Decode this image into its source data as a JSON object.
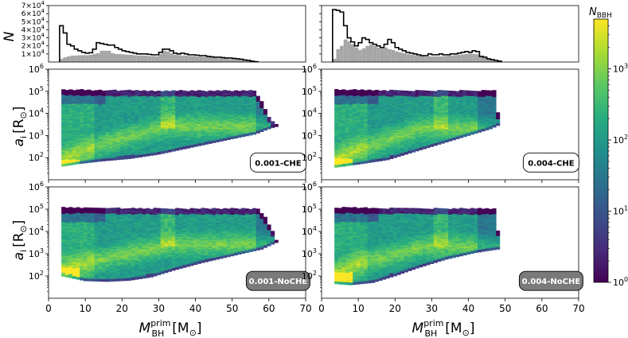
{
  "figure": {
    "hist_ylabel": "N",
    "ylabel_main": "a",
    "ylabel_main_sub": "i",
    "ylabel_unit": "[R",
    "ylabel_unit_end": "]",
    "xlabel_main": "M",
    "xlabel_sup": "prim",
    "xlabel_sub": "BH",
    "xlabel_unit": "[M",
    "xlabel_unit_end": "]",
    "cbar_label": "N",
    "cbar_label_sub": "BBH",
    "sun_symbol": "⊙"
  },
  "chart_data": {
    "type": "heatmap",
    "xlim": [
      0,
      70
    ],
    "x_ticks": [
      0,
      10,
      20,
      30,
      40,
      50,
      60,
      70
    ],
    "x_tick_labels": [
      "0",
      "10",
      "20",
      "30",
      "40",
      "50",
      "60",
      "70"
    ],
    "ylim_log": [
      10,
      1000000
    ],
    "y_tick_exponents": [
      2,
      3,
      4,
      5,
      6
    ],
    "y_tick_base": "10",
    "hist_ylim": [
      0,
      70000
    ],
    "hist_tick_values": [
      10000,
      20000,
      30000,
      40000,
      50000,
      60000,
      70000
    ],
    "hist_tick_mantissa": [
      "1",
      "2",
      "3",
      "4",
      "5",
      "6",
      "7"
    ],
    "hist_tick_times": "×10",
    "hist_tick_exp": "4",
    "colorbar": {
      "scale": "log",
      "range": [
        1,
        5000
      ],
      "tick_exponents": [
        0,
        1,
        2,
        3
      ],
      "tick_base": "10",
      "colormap": "viridis"
    },
    "hist_colors": {
      "outline": "#000000",
      "fill": "#a6a6a6"
    },
    "hist_panels": [
      {
        "column": "left",
        "outline": [
          [
            3,
            45000
          ],
          [
            4,
            36000
          ],
          [
            5,
            22000
          ],
          [
            6,
            20000
          ],
          [
            7,
            16000
          ],
          [
            8,
            14000
          ],
          [
            9,
            12000
          ],
          [
            10,
            11000
          ],
          [
            11,
            11500
          ],
          [
            12,
            16000
          ],
          [
            13,
            24000
          ],
          [
            14,
            23000
          ],
          [
            15,
            22000
          ],
          [
            16,
            21000
          ],
          [
            17,
            21000
          ],
          [
            18,
            18000
          ],
          [
            19,
            16000
          ],
          [
            20,
            14000
          ],
          [
            21,
            13000
          ],
          [
            22,
            12000
          ],
          [
            23,
            11000
          ],
          [
            24,
            10000
          ],
          [
            25,
            10000
          ],
          [
            26,
            10000
          ],
          [
            27,
            9500
          ],
          [
            28,
            9000
          ],
          [
            29,
            9000
          ],
          [
            30,
            12000
          ],
          [
            31,
            16000
          ],
          [
            32,
            16000
          ],
          [
            33,
            14000
          ],
          [
            34,
            11000
          ],
          [
            35,
            10000
          ],
          [
            36,
            11000
          ],
          [
            37,
            10000
          ],
          [
            38,
            9000
          ],
          [
            39,
            9000
          ],
          [
            40,
            8500
          ],
          [
            41,
            8000
          ],
          [
            42,
            8000
          ],
          [
            43,
            7000
          ],
          [
            44,
            6500
          ],
          [
            45,
            6000
          ],
          [
            46,
            6000
          ],
          [
            47,
            5500
          ],
          [
            48,
            5000
          ],
          [
            49,
            5000
          ],
          [
            50,
            4500
          ],
          [
            51,
            4000
          ],
          [
            52,
            3500
          ],
          [
            53,
            2500
          ],
          [
            54,
            2000
          ],
          [
            55,
            1000
          ],
          [
            56,
            500
          ]
        ],
        "filled": [
          [
            3,
            4000
          ],
          [
            4,
            6000
          ],
          [
            5,
            7000
          ],
          [
            6,
            8000
          ],
          [
            7,
            8000
          ],
          [
            8,
            8500
          ],
          [
            9,
            8500
          ],
          [
            10,
            8500
          ],
          [
            11,
            9000
          ],
          [
            12,
            10000
          ],
          [
            13,
            11000
          ],
          [
            14,
            14000
          ],
          [
            15,
            14000
          ],
          [
            16,
            14000
          ],
          [
            17,
            11000
          ],
          [
            18,
            10000
          ],
          [
            19,
            10000
          ],
          [
            20,
            9500
          ],
          [
            21,
            9000
          ],
          [
            22,
            9000
          ],
          [
            23,
            8500
          ],
          [
            24,
            8000
          ],
          [
            25,
            8000
          ],
          [
            26,
            8000
          ],
          [
            27,
            7500
          ],
          [
            28,
            7500
          ],
          [
            29,
            7000
          ],
          [
            30,
            10000
          ],
          [
            31,
            14000
          ],
          [
            32,
            13000
          ],
          [
            33,
            11000
          ],
          [
            34,
            9000
          ],
          [
            35,
            8500
          ],
          [
            36,
            8000
          ],
          [
            37,
            8000
          ],
          [
            38,
            7500
          ],
          [
            39,
            7500
          ],
          [
            40,
            7000
          ],
          [
            41,
            7000
          ],
          [
            42,
            6500
          ],
          [
            43,
            6000
          ],
          [
            44,
            5500
          ],
          [
            45,
            5000
          ],
          [
            46,
            4500
          ],
          [
            47,
            4500
          ],
          [
            48,
            4000
          ],
          [
            49,
            3500
          ],
          [
            50,
            3500
          ],
          [
            51,
            3000
          ],
          [
            52,
            2500
          ],
          [
            53,
            2000
          ],
          [
            54,
            1500
          ],
          [
            55,
            800
          ],
          [
            56,
            400
          ]
        ]
      },
      {
        "column": "right",
        "outline": [
          [
            3,
            65000
          ],
          [
            4,
            64000
          ],
          [
            5,
            62000
          ],
          [
            6,
            45000
          ],
          [
            7,
            30000
          ],
          [
            8,
            25000
          ],
          [
            9,
            20000
          ],
          [
            10,
            24000
          ],
          [
            11,
            30000
          ],
          [
            12,
            28000
          ],
          [
            13,
            24000
          ],
          [
            14,
            22000
          ],
          [
            15,
            20000
          ],
          [
            16,
            18000
          ],
          [
            17,
            22000
          ],
          [
            18,
            28000
          ],
          [
            19,
            24000
          ],
          [
            20,
            18000
          ],
          [
            21,
            16000
          ],
          [
            22,
            14000
          ],
          [
            23,
            12000
          ],
          [
            24,
            11000
          ],
          [
            25,
            10000
          ],
          [
            26,
            9000
          ],
          [
            27,
            8000
          ],
          [
            28,
            8000
          ],
          [
            29,
            10000
          ],
          [
            30,
            9000
          ],
          [
            31,
            9000
          ],
          [
            32,
            10000
          ],
          [
            33,
            9000
          ],
          [
            34,
            9000
          ],
          [
            35,
            10000
          ],
          [
            36,
            10000
          ],
          [
            37,
            11000
          ],
          [
            38,
            12000
          ],
          [
            39,
            13000
          ],
          [
            40,
            12000
          ],
          [
            41,
            14000
          ],
          [
            42,
            13000
          ],
          [
            43,
            7000
          ],
          [
            44,
            6000
          ],
          [
            45,
            4000
          ],
          [
            46,
            3000
          ],
          [
            47,
            2000
          ],
          [
            48,
            1000
          ]
        ],
        "filled": [
          [
            3,
            4000
          ],
          [
            4,
            16000
          ],
          [
            5,
            20000
          ],
          [
            6,
            28000
          ],
          [
            7,
            26000
          ],
          [
            8,
            22000
          ],
          [
            9,
            18000
          ],
          [
            10,
            15000
          ],
          [
            11,
            17000
          ],
          [
            12,
            20000
          ],
          [
            13,
            22000
          ],
          [
            14,
            20000
          ],
          [
            15,
            18000
          ],
          [
            16,
            17000
          ],
          [
            17,
            18000
          ],
          [
            18,
            16000
          ],
          [
            19,
            15000
          ],
          [
            20,
            13000
          ],
          [
            21,
            12000
          ],
          [
            22,
            11000
          ],
          [
            23,
            10000
          ],
          [
            24,
            9000
          ],
          [
            25,
            8500
          ],
          [
            26,
            8000
          ],
          [
            27,
            7500
          ],
          [
            28,
            7000
          ],
          [
            29,
            7000
          ],
          [
            30,
            7000
          ],
          [
            31,
            7000
          ],
          [
            32,
            7000
          ],
          [
            33,
            7500
          ],
          [
            34,
            8000
          ],
          [
            35,
            8000
          ],
          [
            36,
            8500
          ],
          [
            37,
            9000
          ],
          [
            38,
            9500
          ],
          [
            39,
            10000
          ],
          [
            40,
            10500
          ],
          [
            41,
            10000
          ],
          [
            42,
            9500
          ],
          [
            43,
            6000
          ],
          [
            44,
            5000
          ],
          [
            45,
            3500
          ],
          [
            46,
            2500
          ],
          [
            47,
            1500
          ],
          [
            48,
            800
          ]
        ]
      }
    ],
    "heatmap_panels": [
      {
        "label": "0.001-CHE",
        "label_style": "light",
        "row": 0,
        "column": "left",
        "x_min": 3.5,
        "x_max": 62,
        "lower_edge": [
          [
            3.5,
            1.6
          ],
          [
            8,
            1.72
          ],
          [
            15,
            1.85
          ],
          [
            22,
            1.95
          ],
          [
            30,
            2.15
          ],
          [
            40,
            2.5
          ],
          [
            50,
            2.85
          ],
          [
            56,
            3.05
          ],
          [
            60,
            3.3
          ],
          [
            62,
            3.4
          ]
        ],
        "upper_edge": [
          [
            3.5,
            5.05
          ],
          [
            30,
            5.0
          ],
          [
            56,
            5.0
          ],
          [
            58,
            4.5
          ],
          [
            60,
            3.8
          ],
          [
            62,
            3.5
          ]
        ],
        "hot_ridge": [
          [
            4,
            1.9
          ],
          [
            8,
            2.2
          ],
          [
            14,
            2.55
          ],
          [
            20,
            2.85
          ],
          [
            26,
            3.1
          ],
          [
            32,
            3.4
          ]
        ],
        "hot_start": 1.9
      },
      {
        "label": "0.004-CHE",
        "label_style": "light",
        "row": 0,
        "column": "right",
        "x_min": 3.5,
        "x_max": 48,
        "lower_edge": [
          [
            3.5,
            1.55
          ],
          [
            10,
            1.7
          ],
          [
            18,
            1.9
          ],
          [
            24,
            2.2
          ],
          [
            32,
            2.6
          ],
          [
            40,
            3.0
          ],
          [
            46,
            3.3
          ],
          [
            48,
            3.45
          ]
        ],
        "upper_edge": [
          [
            3.5,
            5.05
          ],
          [
            26,
            5.0
          ],
          [
            47,
            5.0
          ],
          [
            48,
            4.0
          ]
        ],
        "hot_ridge": [
          [
            4,
            1.9
          ],
          [
            9,
            2.3
          ],
          [
            15,
            2.6
          ],
          [
            21,
            2.95
          ],
          [
            27,
            3.3
          ]
        ],
        "hot_start": 1.95
      },
      {
        "label": "0.001-NoCHE",
        "label_style": "dark",
        "row": 1,
        "column": "left",
        "x_min": 3.5,
        "x_max": 62,
        "lower_edge": [
          [
            3.5,
            2.0
          ],
          [
            10,
            1.78
          ],
          [
            16,
            1.75
          ],
          [
            22,
            1.8
          ],
          [
            28,
            1.95
          ],
          [
            34,
            2.25
          ],
          [
            42,
            2.6
          ],
          [
            50,
            2.9
          ],
          [
            58,
            3.2
          ],
          [
            60,
            3.35
          ],
          [
            62,
            3.5
          ]
        ],
        "upper_edge": [
          [
            3.5,
            5.05
          ],
          [
            30,
            5.0
          ],
          [
            57,
            5.0
          ],
          [
            59,
            4.6
          ],
          [
            61,
            4.0
          ],
          [
            62,
            3.6
          ]
        ],
        "hot_ridge": [
          [
            4,
            2.3
          ],
          [
            10,
            2.55
          ],
          [
            16,
            2.8
          ],
          [
            22,
            3.0
          ],
          [
            28,
            3.2
          ],
          [
            34,
            3.4
          ]
        ],
        "hot_start": 2.35
      },
      {
        "label": "0.004-NoCHE",
        "label_style": "dark",
        "row": 1,
        "column": "right",
        "x_min": 3.5,
        "x_max": 48,
        "lower_edge": [
          [
            3.5,
            1.65
          ],
          [
            8,
            1.6
          ],
          [
            14,
            1.7
          ],
          [
            20,
            2.0
          ],
          [
            26,
            2.35
          ],
          [
            34,
            2.75
          ],
          [
            42,
            3.05
          ],
          [
            48,
            3.2
          ]
        ],
        "upper_edge": [
          [
            3.5,
            5.05
          ],
          [
            27,
            5.0
          ],
          [
            47,
            5.0
          ],
          [
            48,
            4.0
          ]
        ],
        "hot_ridge": [
          [
            4,
            2.1
          ],
          [
            9,
            2.5
          ],
          [
            15,
            2.75
          ],
          [
            21,
            3.0
          ],
          [
            27,
            3.3
          ]
        ],
        "hot_start": 2.15
      }
    ]
  }
}
